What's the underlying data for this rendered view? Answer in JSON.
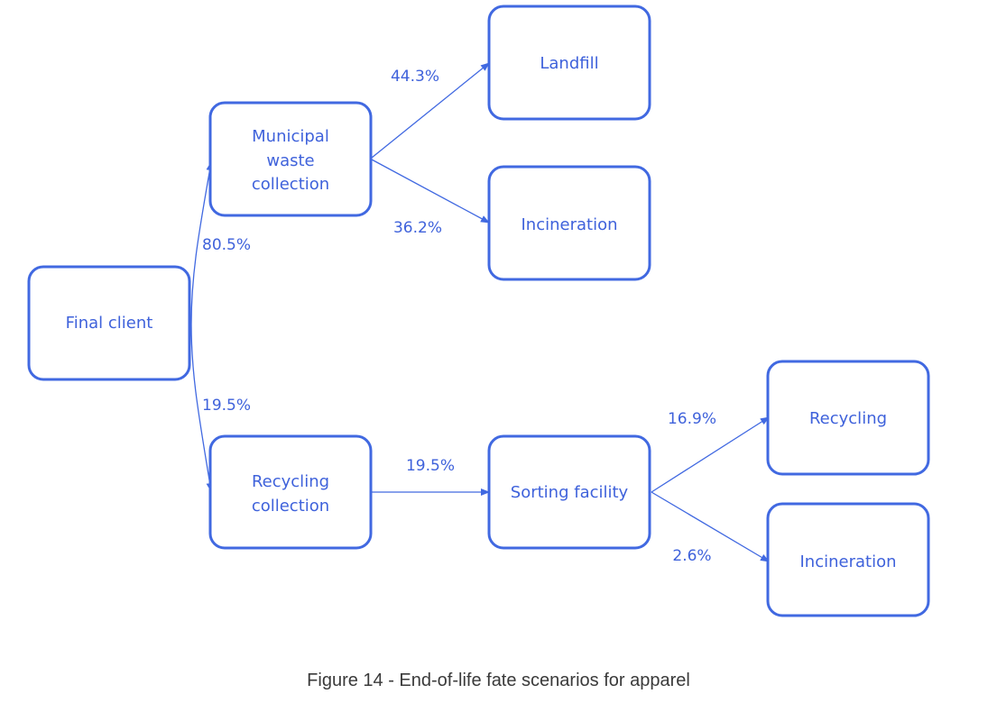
{
  "nodes": {
    "final_client": [
      "Final client"
    ],
    "municipal": [
      "Municipal",
      "waste",
      "collection"
    ],
    "landfill": [
      "Landfill"
    ],
    "incineration_top": [
      "Incineration"
    ],
    "recycling_collection": [
      "Recycling",
      "collection"
    ],
    "sorting": [
      "Sorting facility"
    ],
    "recycling": [
      "Recycling"
    ],
    "incineration_bottom": [
      "Incineration"
    ]
  },
  "edges": {
    "to_municipal": "80.5%",
    "to_recycling_collection": "19.5%",
    "to_landfill": "44.3%",
    "to_incineration_top": "36.2%",
    "to_sorting": "19.5%",
    "to_recycling": "16.9%",
    "to_incineration_bottom": "2.6%"
  },
  "caption": "Figure 14 - End-of-life fate scenarios for apparel",
  "colors": {
    "accent": "#4169e1",
    "text": "#3f62db",
    "caption": "#3a3a3a"
  }
}
